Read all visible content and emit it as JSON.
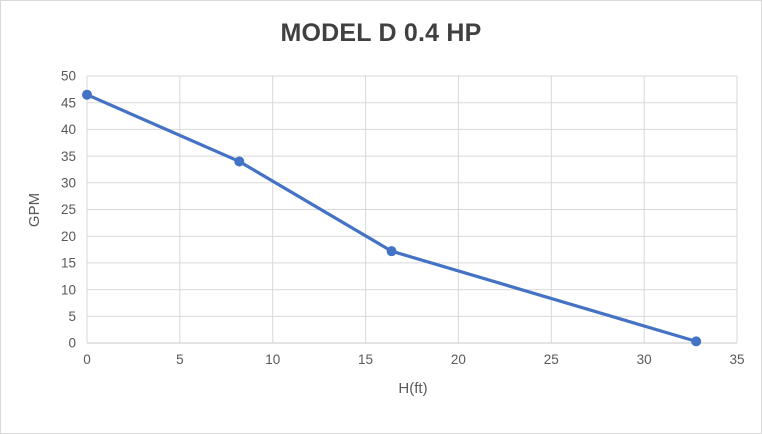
{
  "chart_data": {
    "type": "line",
    "title": "MODEL D 0.4 HP",
    "xlabel": "H(ft)",
    "ylabel": "GPM",
    "x": [
      0,
      8.2,
      16.4,
      32.8
    ],
    "series": [
      {
        "name": "MODEL D 0.4 HP",
        "values": [
          46.5,
          34,
          17.2,
          0.3
        ]
      }
    ],
    "xlim": [
      0,
      35
    ],
    "ylim": [
      0,
      50
    ],
    "xticks": [
      0,
      5,
      10,
      15,
      20,
      25,
      30,
      35
    ],
    "yticks": [
      0,
      5,
      10,
      15,
      20,
      25,
      30,
      35,
      40,
      45,
      50
    ],
    "grid": true,
    "legend": "none",
    "marker": "circle",
    "colors": {
      "line": "#4472C4",
      "marker": "#4472C4",
      "gridline": "#D9D9D9",
      "axis_line": "#D2D2D2",
      "tick_label": "#595959",
      "axis_title": "#595959",
      "title": "#404040",
      "background": "#FFFFFF",
      "border": "#D9D9D9"
    }
  }
}
